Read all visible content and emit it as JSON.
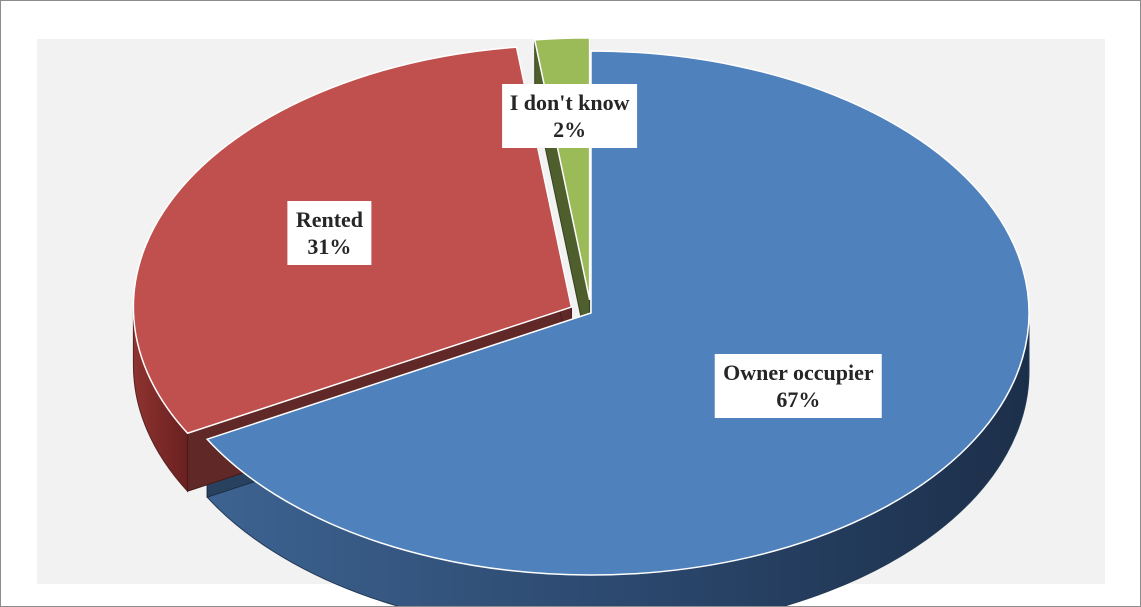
{
  "chart_data": {
    "type": "pie",
    "title": "",
    "categories": [
      "Owner occupier",
      "Rented",
      "I don't know"
    ],
    "values": [
      67,
      31,
      2
    ],
    "labels": [
      {
        "name": "Owner occupier",
        "percent": "67%"
      },
      {
        "name": "Rented",
        "percent": "31%"
      },
      {
        "name": "I don't know",
        "percent": "2%"
      }
    ],
    "colors": [
      "#4f81bd",
      "#c0504d",
      "#9bbb59"
    ],
    "style": "3d-exploded",
    "legend": "none"
  }
}
